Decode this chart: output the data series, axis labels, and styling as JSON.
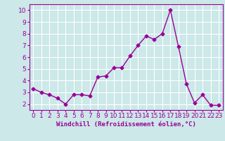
{
  "x": [
    0,
    1,
    2,
    3,
    4,
    5,
    6,
    7,
    8,
    9,
    10,
    11,
    12,
    13,
    14,
    15,
    16,
    17,
    18,
    19,
    20,
    21,
    22,
    23
  ],
  "y": [
    3.3,
    3.0,
    2.8,
    2.5,
    2.0,
    2.8,
    2.8,
    2.7,
    4.3,
    4.4,
    5.1,
    5.1,
    6.1,
    7.0,
    7.8,
    7.5,
    8.0,
    10.0,
    6.9,
    3.7,
    2.1,
    2.8,
    1.9,
    1.9
  ],
  "line_color": "#990099",
  "marker": "D",
  "marker_size": 2.5,
  "bg_color": "#cce8e8",
  "grid_color": "#ffffff",
  "xlabel": "Windchill (Refroidissement éolien,°C)",
  "ylim": [
    1.5,
    10.5
  ],
  "xlim": [
    -0.5,
    23.5
  ],
  "yticks": [
    2,
    3,
    4,
    5,
    6,
    7,
    8,
    9,
    10
  ],
  "xticks": [
    0,
    1,
    2,
    3,
    4,
    5,
    6,
    7,
    8,
    9,
    10,
    11,
    12,
    13,
    14,
    15,
    16,
    17,
    18,
    19,
    20,
    21,
    22,
    23
  ],
  "axis_label_color": "#990099",
  "tick_color": "#990099",
  "xlabel_fontsize": 6.5,
  "tick_fontsize": 6.5,
  "linewidth": 1.0
}
